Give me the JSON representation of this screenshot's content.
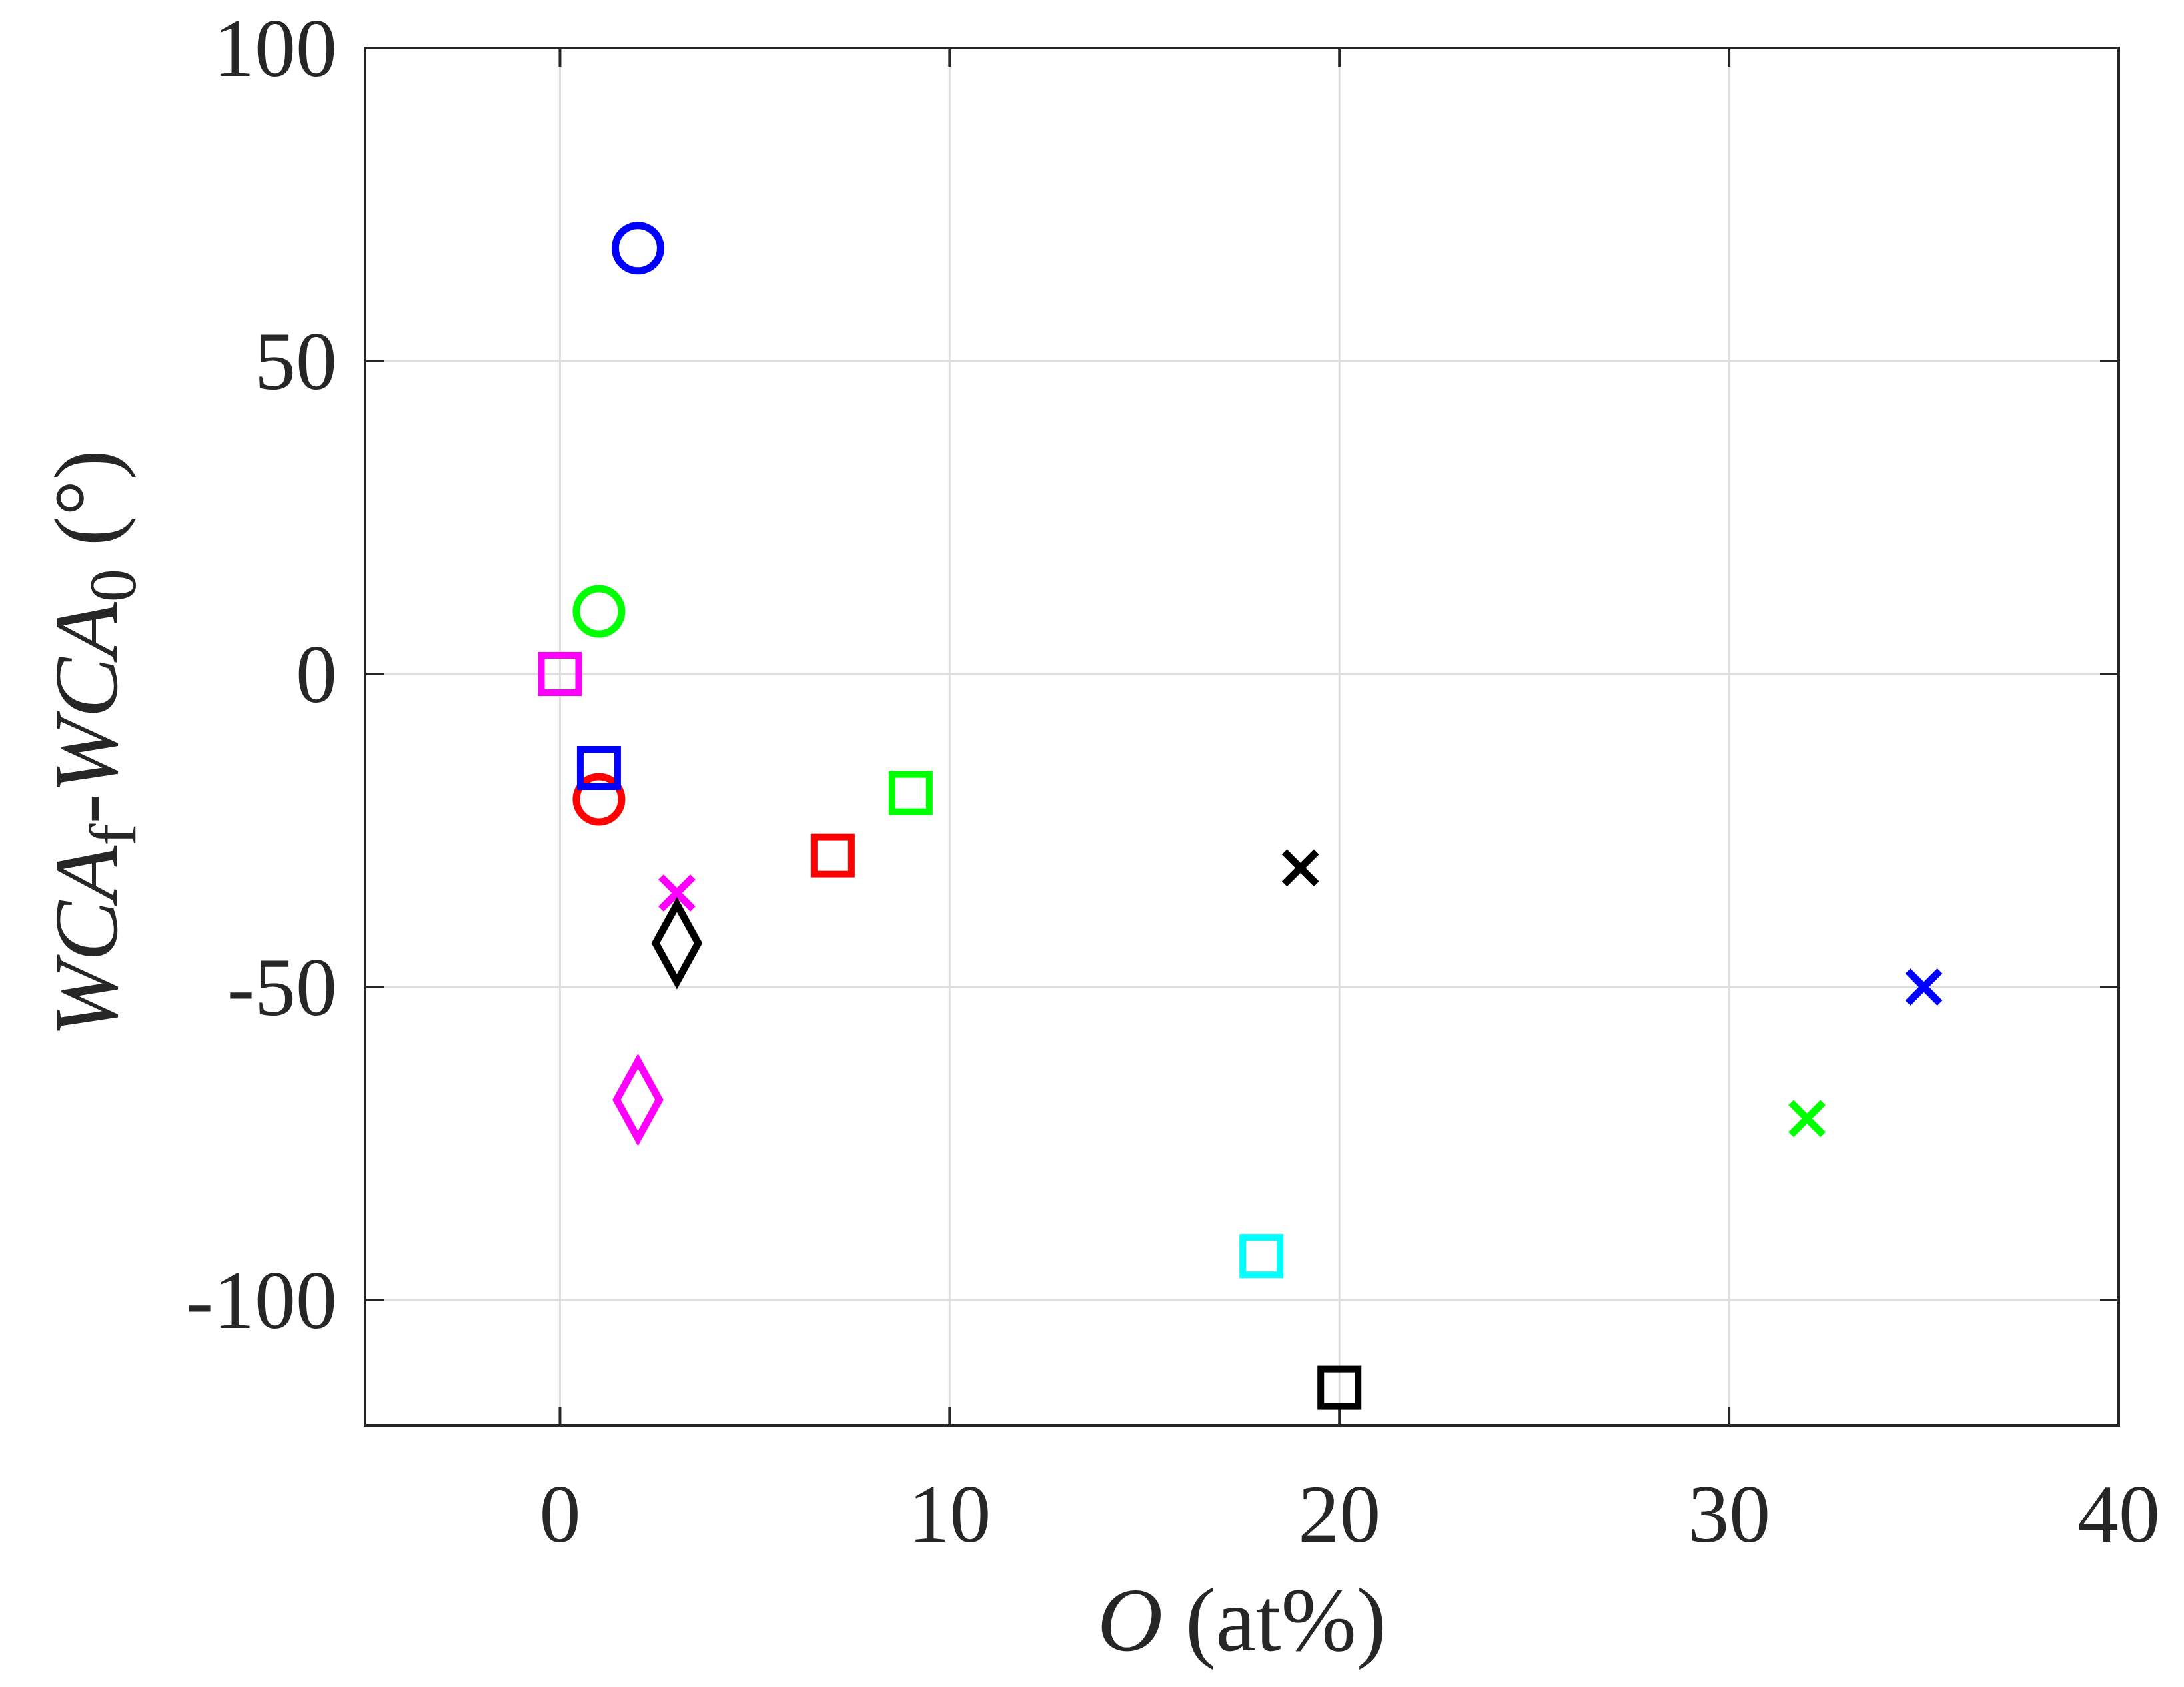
{
  "chart_data": {
    "type": "scatter",
    "title": "",
    "xlabel": {
      "var": "O",
      "rest": " (at%)"
    },
    "ylabel": {
      "a": "WCA",
      "a_sub": "f",
      "dash": "-",
      "b": "WCA",
      "b_sub": "0",
      "unit": " (°)"
    },
    "xlim": [
      -5,
      40
    ],
    "ylim": [
      -120,
      100
    ],
    "grid": true,
    "x_ticks": [
      {
        "value": 0,
        "label": "0"
      },
      {
        "value": 10,
        "label": "10"
      },
      {
        "value": 20,
        "label": "20"
      },
      {
        "value": 30,
        "label": "30"
      },
      {
        "value": 40,
        "label": "40"
      }
    ],
    "y_ticks": [
      {
        "value": 100,
        "label": "100"
      },
      {
        "value": 50,
        "label": "50"
      },
      {
        "value": 0,
        "label": "0"
      },
      {
        "value": -50,
        "label": "-50"
      },
      {
        "value": -100,
        "label": "-100"
      }
    ],
    "points": [
      {
        "x": 2,
        "y": 68,
        "marker": "circle",
        "color": "#0000ff"
      },
      {
        "x": 1,
        "y": 10,
        "marker": "circle",
        "color": "#00ff00"
      },
      {
        "x": 1,
        "y": -20,
        "marker": "circle",
        "color": "#ff0000"
      },
      {
        "x": 0,
        "y": 0,
        "marker": "square",
        "color": "#ff00ff"
      },
      {
        "x": 1,
        "y": -15,
        "marker": "square",
        "color": "#0000ff"
      },
      {
        "x": 7,
        "y": -29,
        "marker": "square",
        "color": "#ff0000"
      },
      {
        "x": 9,
        "y": -19,
        "marker": "square",
        "color": "#00ff00"
      },
      {
        "x": 18,
        "y": -93,
        "marker": "square",
        "color": "#00ffff"
      },
      {
        "x": 20,
        "y": -114,
        "marker": "square",
        "color": "#000000"
      },
      {
        "x": 3,
        "y": -35,
        "marker": "x",
        "color": "#ff00ff"
      },
      {
        "x": 19,
        "y": -31,
        "marker": "x",
        "color": "#000000"
      },
      {
        "x": 32,
        "y": -71,
        "marker": "x",
        "color": "#00ff00"
      },
      {
        "x": 35,
        "y": -50,
        "marker": "x",
        "color": "#0000ff"
      },
      {
        "x": 3,
        "y": -43,
        "marker": "diamond",
        "color": "#000000"
      },
      {
        "x": 2,
        "y": -68,
        "marker": "diamond",
        "color": "#ff00ff"
      }
    ]
  }
}
